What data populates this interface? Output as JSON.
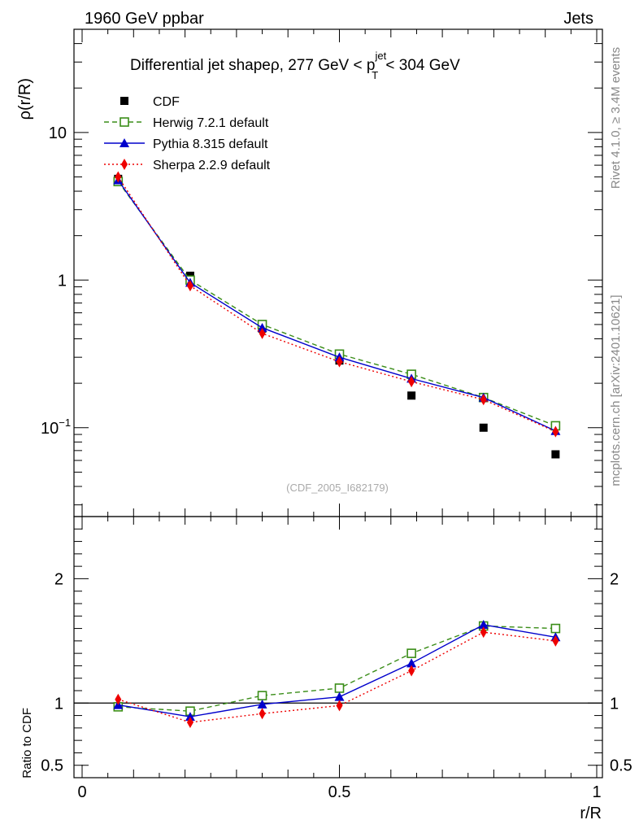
{
  "header": {
    "left": "1960 GeV ppbar",
    "right": "Jets"
  },
  "side": {
    "rivet": "Rivet 4.1.0, ≥ 3.4M events",
    "mcplots": "mcplots.cern.ch [arXiv:2401.10621]"
  },
  "chart_data": {
    "type": "line",
    "title": {
      "main": "Differential jet shapeρ, 277 GeV < p",
      "sup": "jet",
      "sub": "T",
      "tail": " < 304 GeV"
    },
    "watermark": "(CDF_2005_I682179)",
    "ylabel": "ρ(r/R)",
    "xlabel": "r/R",
    "ratio_ylabel": "Ratio to CDF",
    "xlim": [
      0,
      1
    ],
    "ylim": [
      0.025,
      50
    ],
    "ratio_ylim": [
      0.4,
      2.5
    ],
    "yscale": "log",
    "x_ticks": [
      "0",
      "0.5",
      "1"
    ],
    "y_ticks": [
      {
        "value": 0.1,
        "label": "10",
        "sup": "−1"
      },
      {
        "value": 1,
        "label": "1",
        "sup": ""
      },
      {
        "value": 10,
        "label": "10",
        "sup": ""
      }
    ],
    "ratio_ticks": [
      {
        "value": 0.5,
        "label": "0.5"
      },
      {
        "value": 1,
        "label": "1"
      },
      {
        "value": 2,
        "label": "2"
      }
    ],
    "x": [
      0.07,
      0.21,
      0.35,
      0.5,
      0.64,
      0.78,
      0.92
    ],
    "series": [
      {
        "name": "CDF",
        "color": "#000000",
        "marker": "square-filled",
        "line": "none",
        "values": [
          4.85,
          1.07,
          0.47,
          0.285,
          0.165,
          0.1,
          0.066
        ]
      },
      {
        "name": "Herwig 7.2.1 default",
        "color": "#3a8d18",
        "marker": "square-open",
        "line": "dashed",
        "values": [
          4.65,
          1.0,
          0.5,
          0.315,
          0.23,
          0.16,
          0.103
        ]
      },
      {
        "name": "Pythia 8.315 default",
        "color": "#0000cc",
        "marker": "triangle",
        "line": "solid",
        "values": [
          4.75,
          0.96,
          0.475,
          0.3,
          0.215,
          0.16,
          0.095
        ]
      },
      {
        "name": "Sherpa 2.2.9 default",
        "color": "#ee0000",
        "marker": "diamond",
        "line": "dotted",
        "values": [
          5.0,
          0.915,
          0.435,
          0.28,
          0.205,
          0.155,
          0.094
        ]
      }
    ],
    "ratios": [
      {
        "name": "Herwig 7.2.1 default",
        "values": [
          0.97,
          0.935,
          1.06,
          1.12,
          1.4,
          1.62,
          1.6
        ]
      },
      {
        "name": "Pythia 8.315 default",
        "values": [
          0.985,
          0.89,
          0.99,
          1.05,
          1.32,
          1.63,
          1.53
        ]
      },
      {
        "name": "Sherpa 2.2.9 default",
        "values": [
          1.03,
          0.845,
          0.915,
          0.98,
          1.26,
          1.57,
          1.5
        ]
      }
    ]
  }
}
